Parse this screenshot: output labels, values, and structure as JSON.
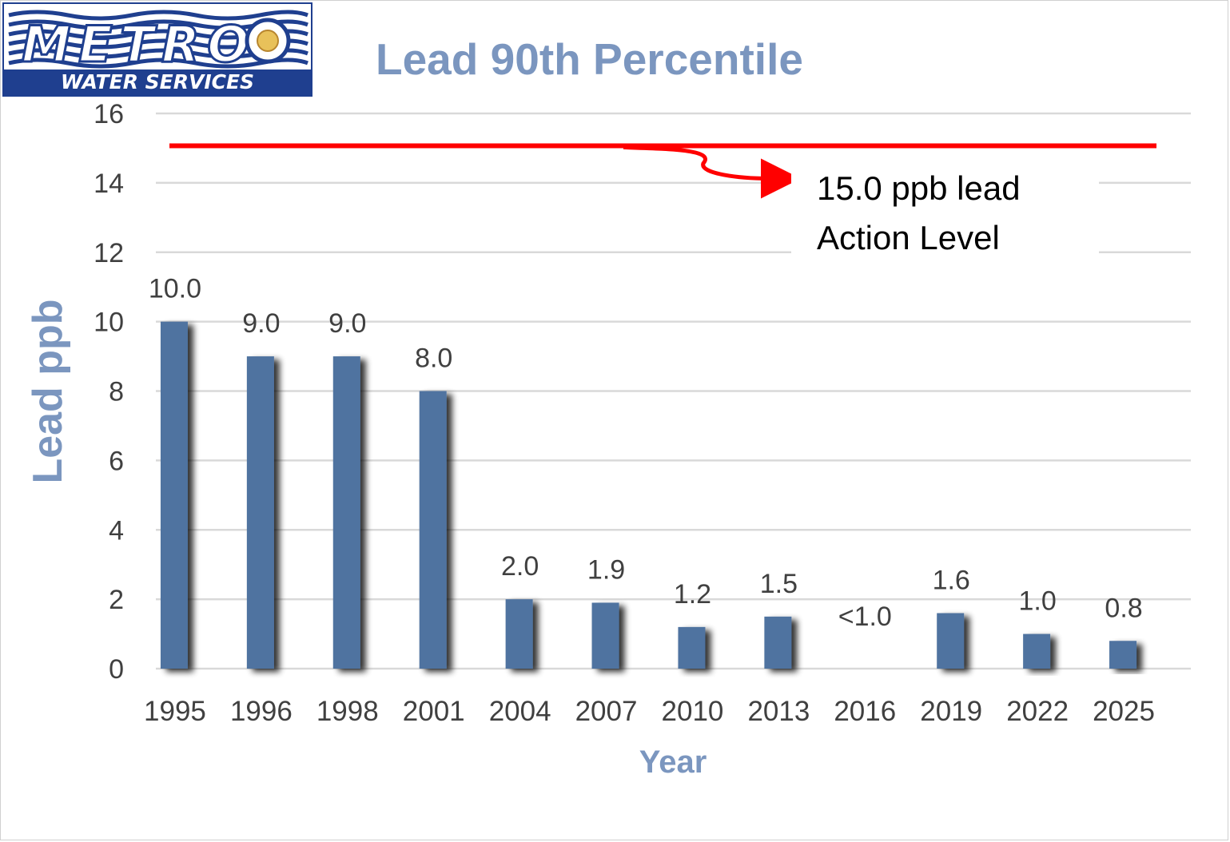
{
  "logo": {
    "brand_text": "METRO",
    "sub_text": "WATER SERVICES"
  },
  "colors": {
    "title": "#7b96bf",
    "bar": "#4f73a0",
    "action_line": "#ff0000",
    "grid": "#d9d9d9",
    "logo_blue": "#1f3f8f"
  },
  "annotation": {
    "line1": "15.0 ppb lead",
    "line2": "Action Level"
  },
  "chart_data": {
    "type": "bar",
    "title": "Lead 90th Percentile",
    "xlabel": "Year",
    "ylabel": "Lead ppb",
    "ylim": [
      0,
      16
    ],
    "yticks": [
      0,
      2,
      4,
      6,
      8,
      10,
      12,
      14,
      16
    ],
    "grid": true,
    "categories": [
      "1995",
      "1996",
      "1998",
      "2001",
      "2004",
      "2007",
      "2010",
      "2013",
      "2016",
      "2019",
      "2022",
      "2025"
    ],
    "values": [
      10.0,
      9.0,
      9.0,
      8.0,
      2.0,
      1.9,
      1.2,
      1.5,
      null,
      1.6,
      1.0,
      0.8
    ],
    "data_labels": [
      "10.0",
      "9.0",
      "9.0",
      "8.0",
      "2.0",
      "1.9",
      "1.2",
      "1.5",
      "<1.0",
      "1.6",
      "1.0",
      "0.8"
    ],
    "reference_line": {
      "value": 15.0
    }
  }
}
